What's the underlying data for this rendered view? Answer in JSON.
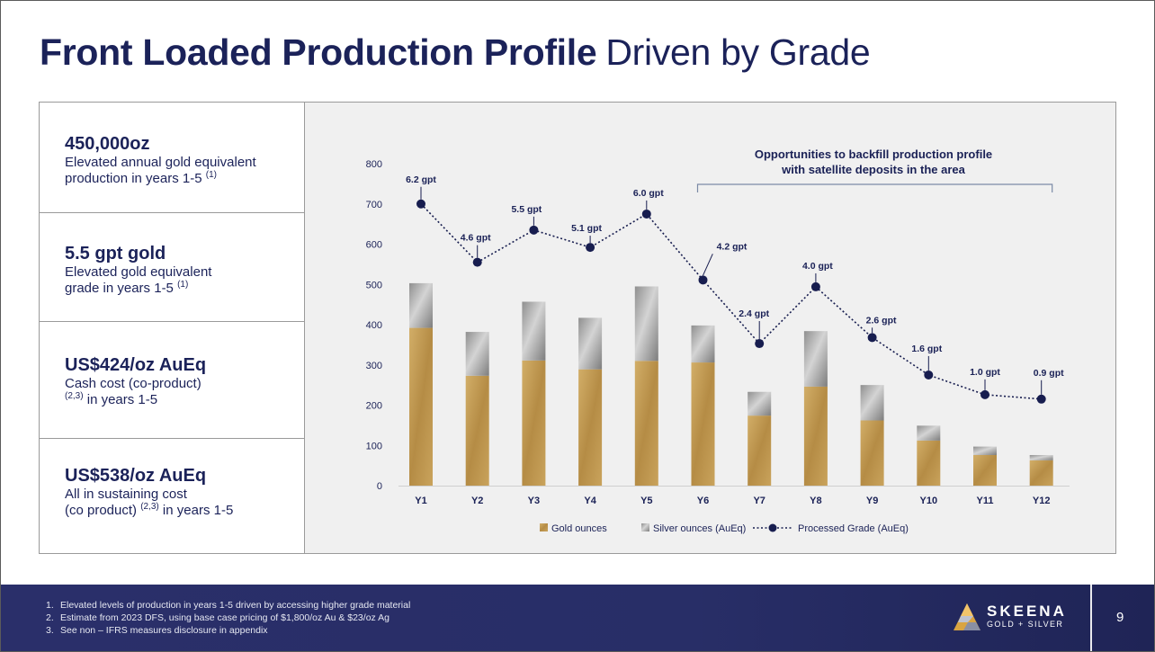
{
  "title": {
    "bold": "Front Loaded Production Profile",
    "normal": "Driven by Grade"
  },
  "stats": [
    {
      "big": "450,000oz",
      "sub1": "Elevated annual gold equivalent",
      "sub2a": "production in years 1-5 ",
      "sup": "(1)",
      "sub2b": ""
    },
    {
      "big": "5.5 gpt gold",
      "sub1": "Elevated gold equivalent",
      "sub2a": "grade in years 1-5 ",
      "sup": "(1)",
      "sub2b": ""
    },
    {
      "big": "US$424/oz AuEq",
      "sub1": "Cash cost (co-product)",
      "sub2a": "",
      "sup": "(2,3)",
      "sub2b": " in years 1-5"
    },
    {
      "big": "US$538/oz AuEq",
      "sub1": "All in sustaining cost",
      "sub2a": "(co product) ",
      "sup": "(2,3)",
      "sub2b": " in years 1-5"
    }
  ],
  "chart_data": {
    "type": "bar",
    "categories": [
      "Y1",
      "Y2",
      "Y3",
      "Y4",
      "Y5",
      "Y6",
      "Y7",
      "Y8",
      "Y9",
      "Y10",
      "Y11",
      "Y12"
    ],
    "series": [
      {
        "name": "Gold ounces",
        "kind": "stacked-bar",
        "color": "#c9a35c",
        "values": [
          392,
          273,
          311,
          289,
          310,
          306,
          174,
          246,
          162,
          112,
          76,
          63
        ]
      },
      {
        "name": "Silver ounces (AuEq)",
        "kind": "stacked-bar",
        "color": "#a5a5a5",
        "values": [
          111,
          109,
          146,
          128,
          185,
          92,
          59,
          138,
          88,
          37,
          21,
          13
        ]
      },
      {
        "name": "Processed Grade (AuEq)",
        "kind": "line",
        "color": "#171d4f",
        "values": [
          6.2,
          4.6,
          5.5,
          5.1,
          6.0,
          4.2,
          2.4,
          4.0,
          2.6,
          1.6,
          1.0,
          0.9
        ]
      }
    ],
    "grade_labels": [
      "6.2 gpt",
      "4.6 gpt",
      "5.5 gpt",
      "5.1 gpt",
      "6.0 gpt",
      "4.2 gpt",
      "2.4 gpt",
      "4.0 gpt",
      "2.6 gpt",
      "1.6 gpt",
      "1.0 gpt",
      "0.9 gpt"
    ],
    "grade_markers_on_left_axis": [
      700,
      555,
      635,
      592,
      675,
      511,
      353,
      494,
      368,
      275,
      226,
      215
    ],
    "yticks": [
      0,
      100,
      200,
      300,
      400,
      500,
      600,
      700,
      800
    ],
    "ylim": [
      0,
      800
    ],
    "legend_position": "bottom",
    "annotation": {
      "line1": "Opportunities to backfill production profile",
      "line2": "with satellite deposits in the area",
      "span": [
        "Y6",
        "Y12"
      ]
    }
  },
  "footer": {
    "notes": [
      "Elevated levels of production in years 1-5 driven by accessing higher grade material",
      "Estimate from 2023 DFS, using base case pricing of $1,800/oz Au & $23/oz Ag",
      "See non – IFRS measures disclosure in appendix"
    ],
    "logo_word": "SKEENA",
    "logo_sub": "GOLD + SILVER",
    "page": "9"
  }
}
